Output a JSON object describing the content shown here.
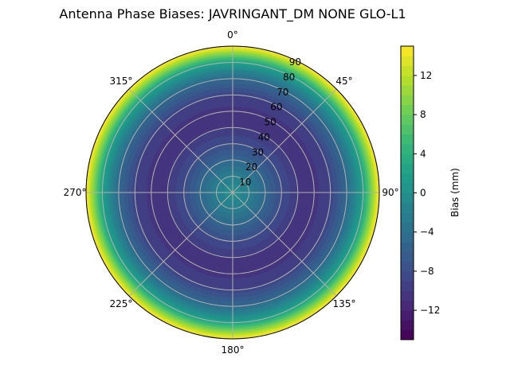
{
  "chart_data": {
    "type": "heatmap",
    "subtype": "polar-contourf",
    "title": "Antenna Phase Biases: JAVRINGANT_DM   NONE GLO-L1",
    "angular_ticks": [
      "0°",
      "45°",
      "90°",
      "135°",
      "180°",
      "225°",
      "270°",
      "315°"
    ],
    "radial_ticks": [
      "10",
      "20",
      "30",
      "40",
      "50",
      "60",
      "70",
      "80",
      "90"
    ],
    "radial_range": [
      0,
      90
    ],
    "grid": true,
    "colormap": "viridis",
    "colorbar": {
      "label": "Bias (mm)",
      "range": [
        -15,
        15
      ],
      "ticks": [
        "−12",
        "−8",
        "−4",
        "0",
        "4",
        "8",
        "12"
      ],
      "tick_values": [
        -12,
        -8,
        -4,
        0,
        4,
        8,
        12
      ]
    },
    "radial_profile": {
      "zenith_deg": [
        0,
        10,
        20,
        30,
        40,
        50,
        60,
        70,
        80,
        90
      ],
      "bias_mm": [
        0,
        -2,
        -5,
        -8,
        -10,
        -10.5,
        -9,
        -5,
        2,
        15
      ]
    }
  }
}
